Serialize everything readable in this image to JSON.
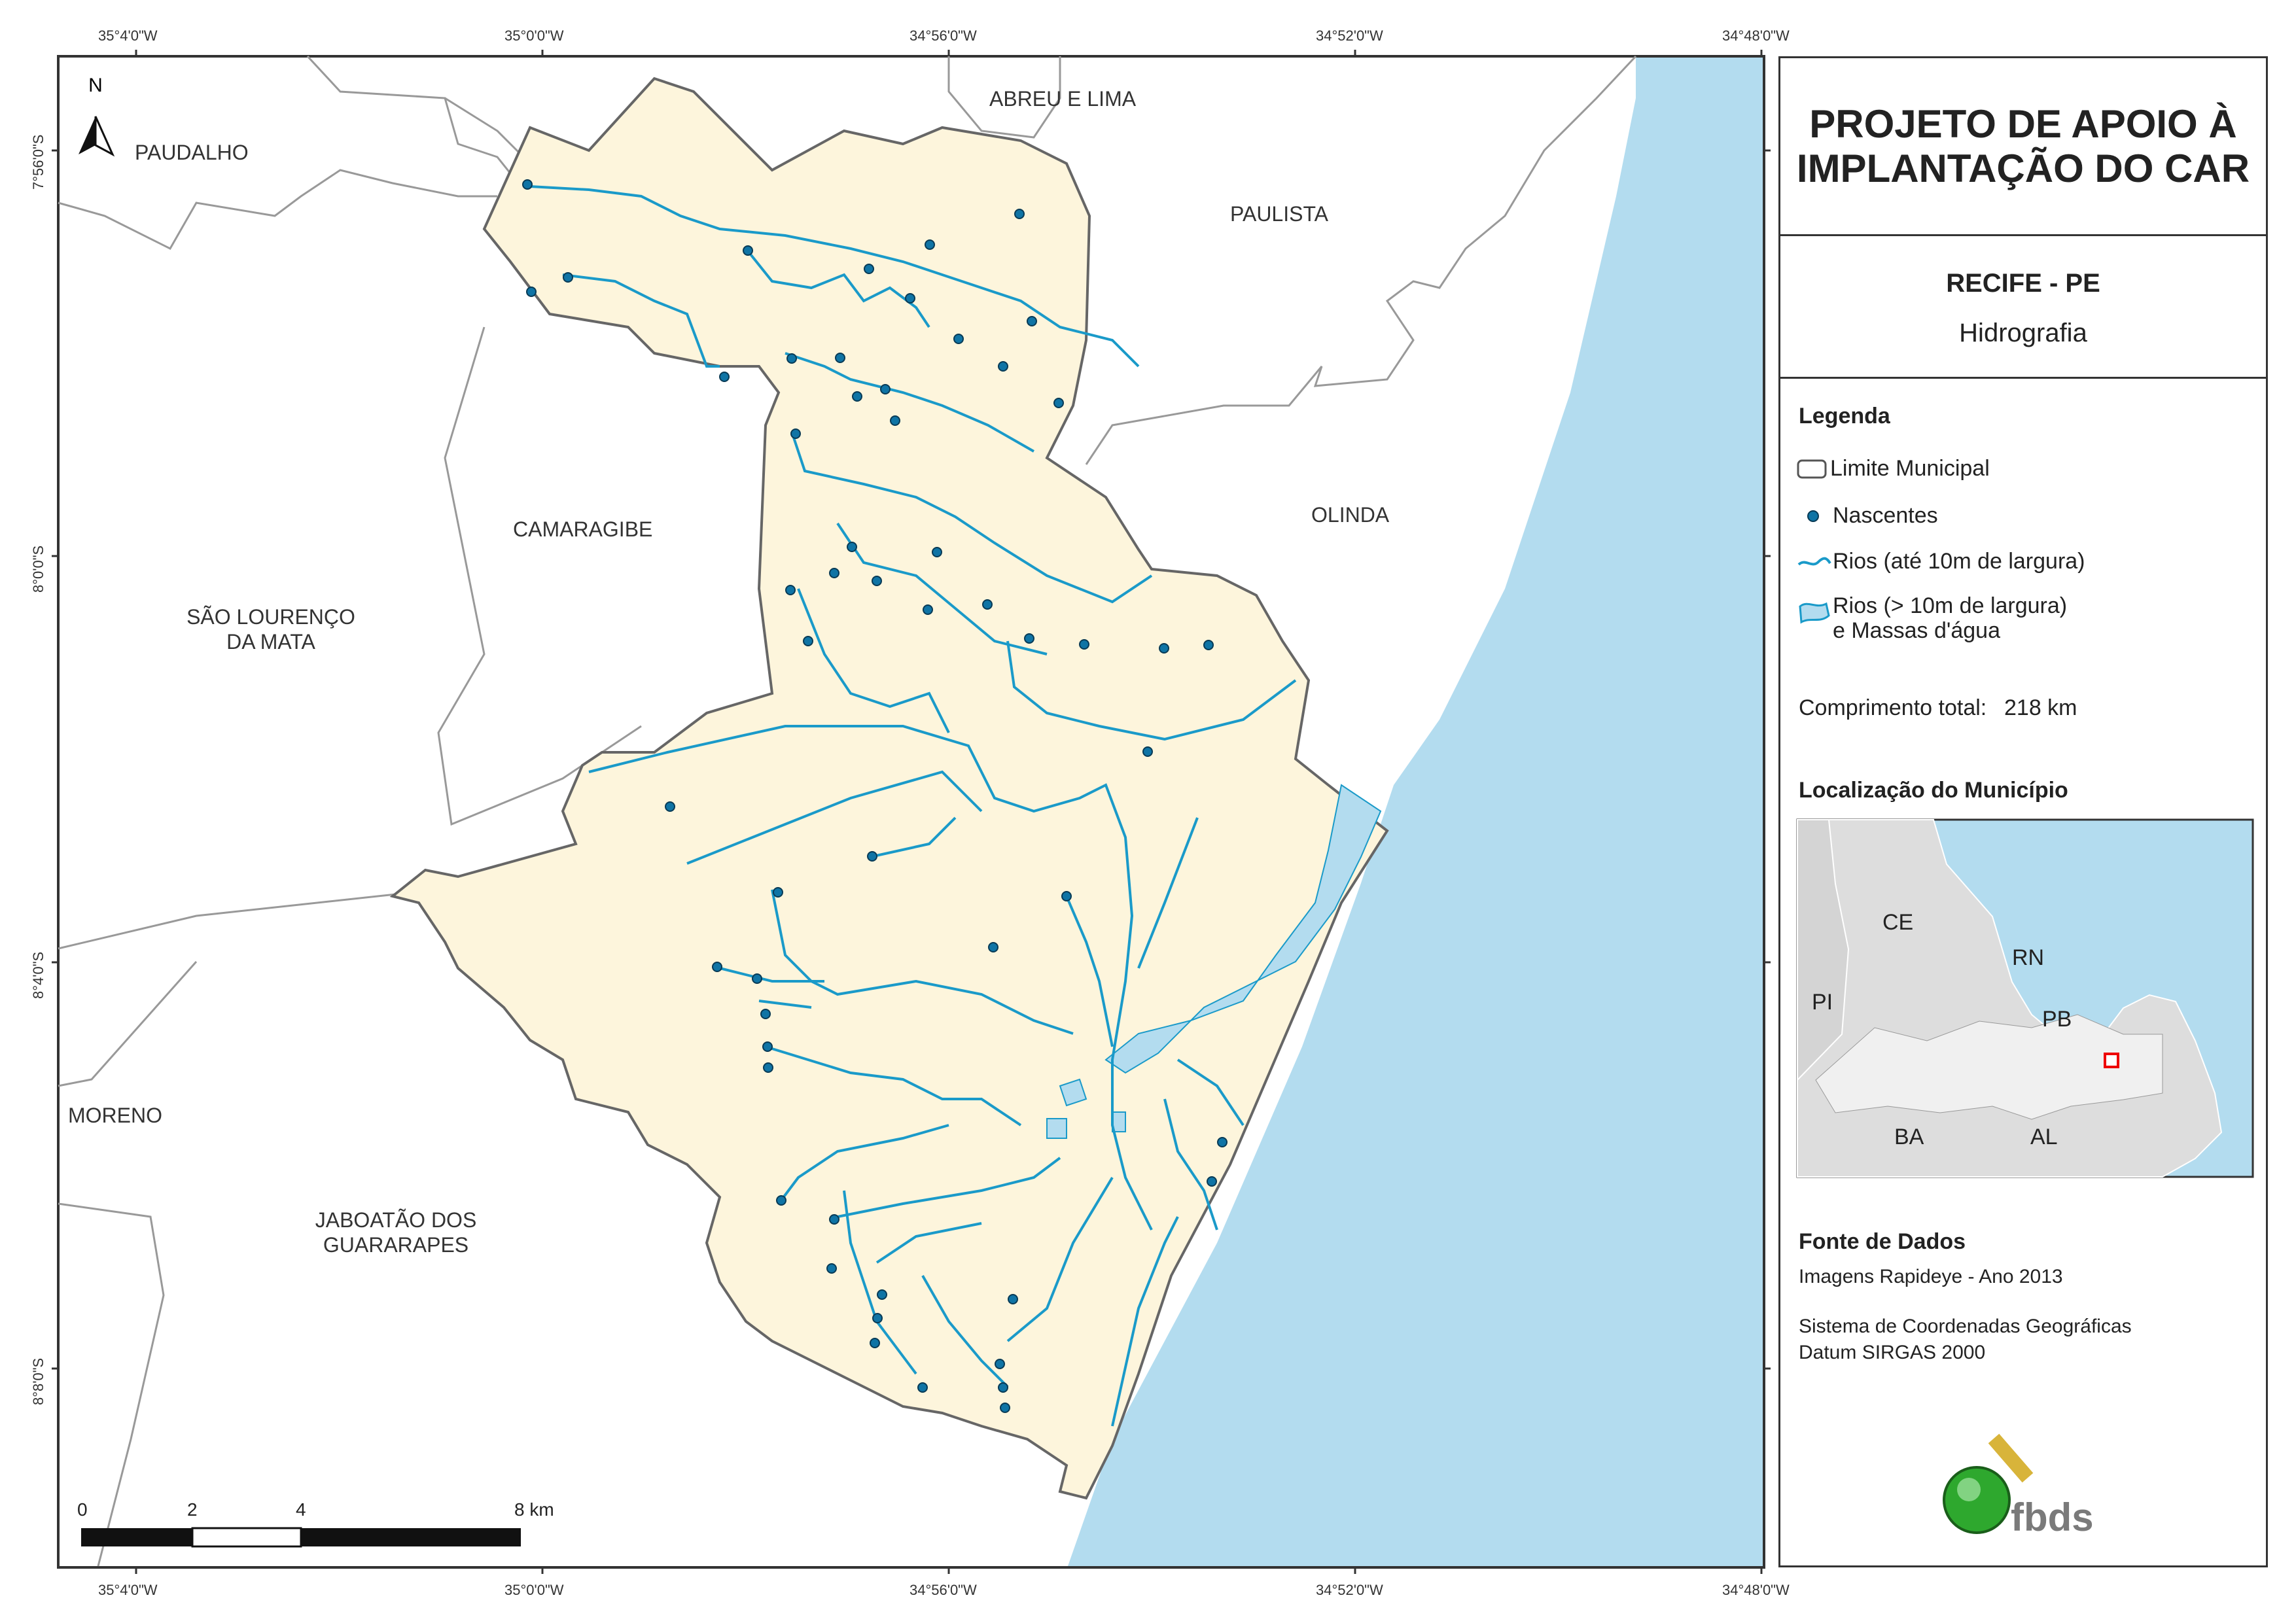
{
  "map": {
    "north_label": "N",
    "coords_top": [
      "35°4'0\"W",
      "35°0'0\"W",
      "34°56'0\"W",
      "34°52'0\"W",
      "34°48'0\"W"
    ],
    "coords_bottom": [
      "35°4'0\"W",
      "35°0'0\"W",
      "34°56'0\"W",
      "34°52'0\"W",
      "34°48'0\"W"
    ],
    "coords_left": [
      "7°56'0\"S",
      "8°0'0\"S",
      "8°4'0\"S",
      "8°8'0\"S"
    ],
    "municipalities": {
      "paudalho": "PAUDALHO",
      "abreu_e_lima": "ABREU E LIMA",
      "paulista": "PAULISTA",
      "camaragibe": "CAMARAGIBE",
      "olinda": "OLINDA",
      "sao_lourenco_1": "SÃO LOURENÇO",
      "sao_lourenco_2": "DA MATA",
      "moreno": "MORENO",
      "jaboatao_1": "JABOATÃO DOS",
      "jaboatao_2": "GUARARAPES"
    },
    "scale_labels": [
      "0",
      "2",
      "4",
      "8 km"
    ],
    "colors": {
      "municipality_fill": "#fdf5dc",
      "ocean": "#b3dcef",
      "river": "#1a9ac9",
      "spring": "#0f74a5",
      "background_muni": "#ffffff"
    }
  },
  "panel": {
    "title_line1": "PROJETO DE APOIO À",
    "title_line2": "IMPLANTAÇÃO DO CAR",
    "city": "RECIFE - PE",
    "theme": "Hidrografia",
    "legend": {
      "heading": "Legenda",
      "limit": "Limite Municipal",
      "springs": "Nascentes",
      "rivers_small": "Rios (até 10m de largura)",
      "rivers_large_1": "Rios (> 10m de largura)",
      "rivers_large_2": "e Massas d'água",
      "total_label": "Comprimento total:",
      "total_value": "218 km"
    },
    "location": {
      "heading": "Localização do Município",
      "states": {
        "ce": "CE",
        "rn": "RN",
        "pi": "PI",
        "pb": "PB",
        "ba": "BA",
        "al": "AL"
      }
    },
    "source": {
      "heading": "Fonte de Dados",
      "line1": "Imagens Rapideye - Ano 2013",
      "line2": "Sistema de Coordenadas Geográficas",
      "line3": "Datum SIRGAS 2000"
    },
    "logo_text": "fbds"
  }
}
